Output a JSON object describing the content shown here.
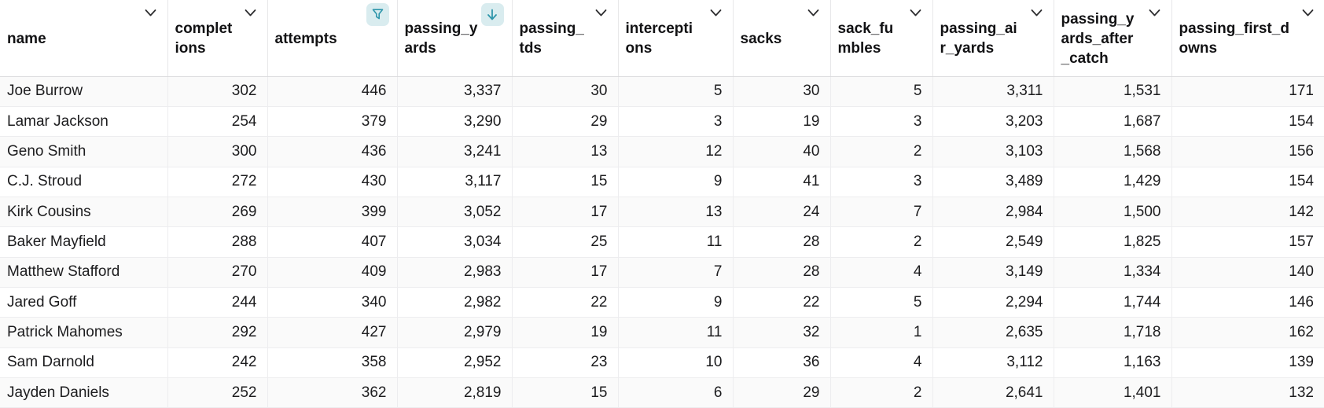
{
  "table": {
    "columns": [
      {
        "label": "name",
        "align": "left",
        "header_icon": "chevron-down"
      },
      {
        "label": "completions",
        "align": "right",
        "header_icon": "chevron-down"
      },
      {
        "label": "attempts",
        "align": "right",
        "header_icon": "filter"
      },
      {
        "label": "passing_yards",
        "align": "right",
        "header_icon": "sort-descending"
      },
      {
        "label": "passing_tds",
        "align": "right",
        "header_icon": "chevron-down"
      },
      {
        "label": "interceptions",
        "align": "right",
        "header_icon": "chevron-down"
      },
      {
        "label": "sacks",
        "align": "right",
        "header_icon": "chevron-down"
      },
      {
        "label": "sack_fumbles",
        "align": "right",
        "header_icon": "chevron-down"
      },
      {
        "label": "passing_air_yards",
        "align": "right",
        "header_icon": "chevron-down"
      },
      {
        "label": "passing_yards_after_catch",
        "align": "right",
        "header_icon": "chevron-down"
      },
      {
        "label": "passing_first_downs",
        "align": "right",
        "header_icon": "chevron-down"
      }
    ],
    "rows": [
      [
        "Joe Burrow",
        "302",
        "446",
        "3,337",
        "30",
        "5",
        "30",
        "5",
        "3,311",
        "1,531",
        "171"
      ],
      [
        "Lamar Jackson",
        "254",
        "379",
        "3,290",
        "29",
        "3",
        "19",
        "3",
        "3,203",
        "1,687",
        "154"
      ],
      [
        "Geno Smith",
        "300",
        "436",
        "3,241",
        "13",
        "12",
        "40",
        "2",
        "3,103",
        "1,568",
        "156"
      ],
      [
        "C.J. Stroud",
        "272",
        "430",
        "3,117",
        "15",
        "9",
        "41",
        "3",
        "3,489",
        "1,429",
        "154"
      ],
      [
        "Kirk Cousins",
        "269",
        "399",
        "3,052",
        "17",
        "13",
        "24",
        "7",
        "2,984",
        "1,500",
        "142"
      ],
      [
        "Baker Mayfield",
        "288",
        "407",
        "3,034",
        "25",
        "11",
        "28",
        "2",
        "2,549",
        "1,825",
        "157"
      ],
      [
        "Matthew Stafford",
        "270",
        "409",
        "2,983",
        "17",
        "7",
        "28",
        "4",
        "3,149",
        "1,334",
        "140"
      ],
      [
        "Jared Goff",
        "244",
        "340",
        "2,982",
        "22",
        "9",
        "22",
        "5",
        "2,294",
        "1,744",
        "146"
      ],
      [
        "Patrick Mahomes",
        "292",
        "427",
        "2,979",
        "19",
        "11",
        "32",
        "1",
        "2,635",
        "1,718",
        "162"
      ],
      [
        "Sam Darnold",
        "242",
        "358",
        "2,952",
        "23",
        "10",
        "36",
        "4",
        "3,112",
        "1,163",
        "139"
      ],
      [
        "Jayden Daniels",
        "252",
        "362",
        "2,819",
        "15",
        "6",
        "29",
        "2",
        "2,641",
        "1,401",
        "132"
      ]
    ]
  },
  "colors": {
    "accent_teal": "#2e96ab",
    "icon_pill_bg": "#d9ecef",
    "chevron": "#2e2e30",
    "header_text": "#121214",
    "cell_text": "#1c1c1e",
    "row_alt_bg": "#fafafa",
    "border": "#ededef"
  }
}
